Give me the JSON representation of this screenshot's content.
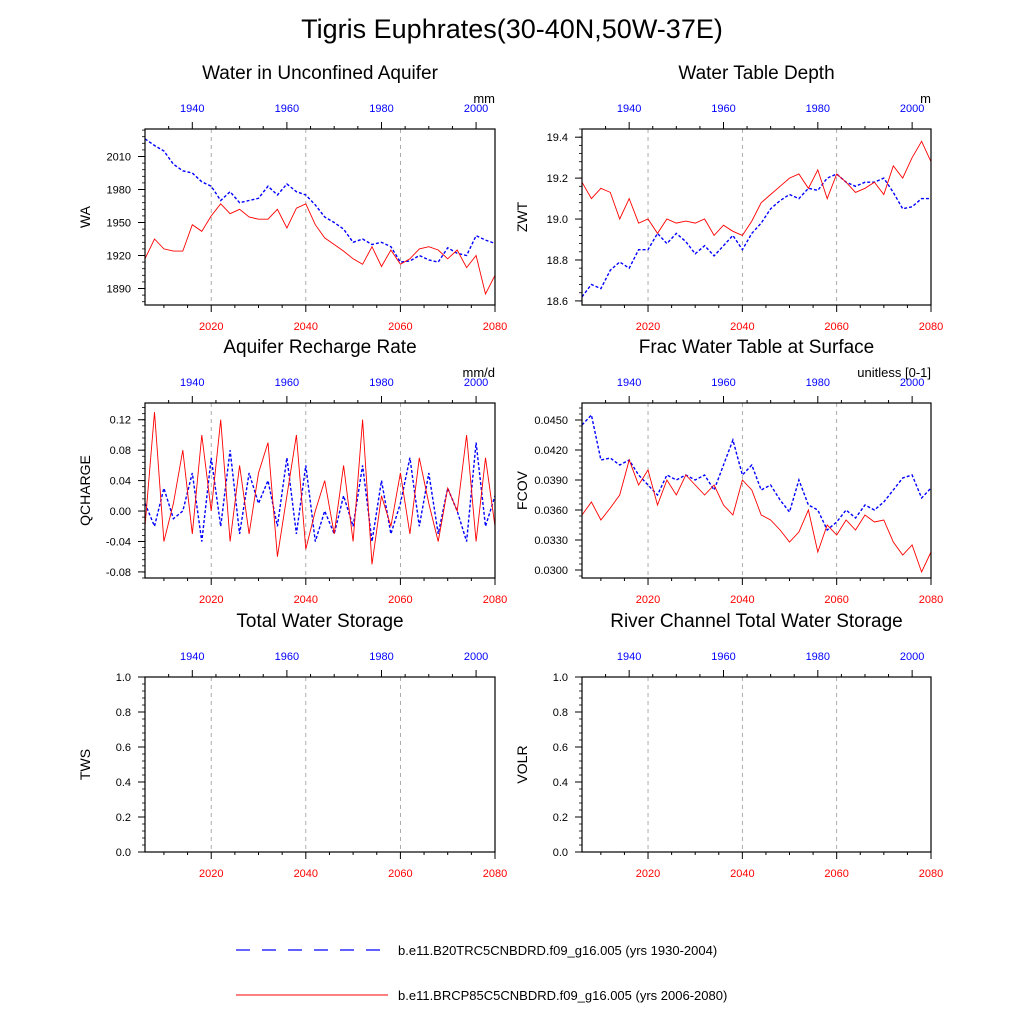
{
  "page_title": "Tigris Euphrates(30-40N,50W-37E)",
  "colors": {
    "top_axis": "#0000ff",
    "bottom_axis": "#ff0000",
    "series_2004": "#0000ff",
    "series_2080": "#ff0000",
    "grid": "#999999"
  },
  "legend": [
    {
      "label": "b.e11.B20TRC5CNBDRD.f09_g16.005 (yrs 1930-2004)",
      "color": "#0000ff",
      "style": "dashed"
    },
    {
      "label": "b.e11.BRCP85C5CNBDRD.f09_g16.005 (yrs 2006-2080)",
      "color": "#ff0000",
      "style": "solid"
    }
  ],
  "chart_data": [
    {
      "type": "line",
      "title": "Water in Unconfined Aquifer",
      "ylabel": "WA",
      "units": "mm",
      "xlim_bottom": [
        2006,
        2080
      ],
      "xlim_top": [
        1930,
        2004
      ],
      "ylim": [
        1875,
        2035
      ],
      "xticks_bottom": [
        2020,
        2040,
        2060,
        2080
      ],
      "xticks_top": [
        1940,
        1960,
        1980,
        2000
      ],
      "yticks": [
        1890,
        1920,
        1950,
        1980,
        2010
      ],
      "ytick_labels": [
        "1890",
        "1920",
        "1950",
        "1980",
        "2010"
      ],
      "grid_x": [
        2020,
        2040,
        2060
      ],
      "series": [
        {
          "color": "#0000ff",
          "style": "dashed",
          "x": [
            2006,
            2008,
            2010,
            2012,
            2014,
            2016,
            2018,
            2020,
            2022,
            2024,
            2026,
            2028,
            2030,
            2032,
            2034,
            2036,
            2038,
            2040,
            2042,
            2044,
            2046,
            2048,
            2050,
            2052,
            2054,
            2056,
            2058,
            2060,
            2062,
            2064,
            2066,
            2068,
            2070,
            2072,
            2074,
            2076,
            2078,
            2080
          ],
          "values": [
            2026,
            2020,
            2015,
            2003,
            1997,
            1995,
            1987,
            1983,
            1970,
            1978,
            1968,
            1970,
            1972,
            1983,
            1975,
            1985,
            1978,
            1975,
            1966,
            1955,
            1950,
            1944,
            1932,
            1935,
            1930,
            1932,
            1928,
            1914,
            1915,
            1920,
            1916,
            1914,
            1927,
            1922,
            1920,
            1938,
            1934,
            1931
          ]
        },
        {
          "color": "#ff0000",
          "style": "solid",
          "x": [
            2006,
            2008,
            2010,
            2012,
            2014,
            2016,
            2018,
            2020,
            2022,
            2024,
            2026,
            2028,
            2030,
            2032,
            2034,
            2036,
            2038,
            2040,
            2042,
            2044,
            2046,
            2048,
            2050,
            2052,
            2054,
            2056,
            2058,
            2060,
            2062,
            2064,
            2066,
            2068,
            2070,
            2072,
            2074,
            2076,
            2078,
            2080
          ],
          "values": [
            1917,
            1935,
            1926,
            1924,
            1924,
            1948,
            1942,
            1956,
            1967,
            1958,
            1962,
            1955,
            1953,
            1953,
            1962,
            1945,
            1963,
            1967,
            1948,
            1936,
            1930,
            1924,
            1917,
            1912,
            1928,
            1910,
            1925,
            1912,
            1917,
            1926,
            1928,
            1925,
            1917,
            1925,
            1909,
            1920,
            1885,
            1902
          ]
        }
      ]
    },
    {
      "type": "line",
      "title": "Water Table Depth",
      "ylabel": "ZWT",
      "units": "m",
      "xlim_bottom": [
        2006,
        2080
      ],
      "xlim_top": [
        1930,
        2004
      ],
      "ylim": [
        18.58,
        19.44
      ],
      "xticks_bottom": [
        2020,
        2040,
        2060,
        2080
      ],
      "xticks_top": [
        1940,
        1960,
        1980,
        2000
      ],
      "yticks": [
        18.6,
        18.8,
        19.0,
        19.2,
        19.4
      ],
      "ytick_labels": [
        "18.6",
        "18.8",
        "19.0",
        "19.2",
        "19.4"
      ],
      "grid_x": [
        2020,
        2040,
        2060
      ],
      "series": [
        {
          "color": "#0000ff",
          "style": "dashed",
          "x": [
            2006,
            2008,
            2010,
            2012,
            2014,
            2016,
            2018,
            2020,
            2022,
            2024,
            2026,
            2028,
            2030,
            2032,
            2034,
            2036,
            2038,
            2040,
            2042,
            2044,
            2046,
            2048,
            2050,
            2052,
            2054,
            2056,
            2058,
            2060,
            2062,
            2064,
            2066,
            2068,
            2070,
            2072,
            2074,
            2076,
            2078,
            2080
          ],
          "values": [
            18.62,
            18.68,
            18.66,
            18.75,
            18.79,
            18.76,
            18.85,
            18.85,
            18.93,
            18.88,
            18.93,
            18.89,
            18.83,
            18.87,
            18.82,
            18.87,
            18.92,
            18.85,
            18.93,
            18.98,
            19.05,
            19.09,
            19.12,
            19.1,
            19.15,
            19.14,
            19.2,
            19.22,
            19.18,
            19.16,
            19.18,
            19.18,
            19.2,
            19.13,
            19.05,
            19.06,
            19.1,
            19.1
          ]
        },
        {
          "color": "#ff0000",
          "style": "solid",
          "x": [
            2006,
            2008,
            2010,
            2012,
            2014,
            2016,
            2018,
            2020,
            2022,
            2024,
            2026,
            2028,
            2030,
            2032,
            2034,
            2036,
            2038,
            2040,
            2042,
            2044,
            2046,
            2048,
            2050,
            2052,
            2054,
            2056,
            2058,
            2060,
            2062,
            2064,
            2066,
            2068,
            2070,
            2072,
            2074,
            2076,
            2078,
            2080
          ],
          "values": [
            19.18,
            19.1,
            19.15,
            19.13,
            19.0,
            19.1,
            18.98,
            19.0,
            18.93,
            19.0,
            18.98,
            18.99,
            18.98,
            19.0,
            18.92,
            18.97,
            18.94,
            18.92,
            18.99,
            19.08,
            19.12,
            19.16,
            19.2,
            19.22,
            19.15,
            19.24,
            19.1,
            19.22,
            19.18,
            19.13,
            19.15,
            19.18,
            19.12,
            19.26,
            19.2,
            19.3,
            19.38,
            19.28
          ]
        }
      ]
    },
    {
      "type": "line",
      "title": "Aquifer Recharge Rate",
      "ylabel": "QCHARGE",
      "units": "mm/d",
      "xlim_bottom": [
        2006,
        2080
      ],
      "xlim_top": [
        1930,
        2004
      ],
      "ylim": [
        -0.088,
        0.142
      ],
      "xticks_bottom": [
        2020,
        2040,
        2060,
        2080
      ],
      "xticks_top": [
        1940,
        1960,
        1980,
        2000
      ],
      "yticks": [
        -0.08,
        -0.04,
        0.0,
        0.04,
        0.08,
        0.12
      ],
      "ytick_labels": [
        "-0.08",
        "-0.04",
        "0.00",
        "0.04",
        "0.08",
        "0.12"
      ],
      "grid_x": [
        2020,
        2040,
        2060
      ],
      "series": [
        {
          "color": "#0000ff",
          "style": "dashed",
          "x": [
            2006,
            2008,
            2010,
            2012,
            2014,
            2016,
            2018,
            2020,
            2022,
            2024,
            2026,
            2028,
            2030,
            2032,
            2034,
            2036,
            2038,
            2040,
            2042,
            2044,
            2046,
            2048,
            2050,
            2052,
            2054,
            2056,
            2058,
            2060,
            2062,
            2064,
            2066,
            2068,
            2070,
            2072,
            2074,
            2076,
            2078,
            2080
          ],
          "values": [
            0.01,
            -0.02,
            0.03,
            -0.01,
            0.0,
            0.05,
            -0.04,
            0.07,
            -0.02,
            0.08,
            -0.03,
            0.05,
            0.01,
            0.04,
            -0.02,
            0.07,
            -0.03,
            0.06,
            -0.04,
            0.0,
            -0.03,
            0.02,
            -0.02,
            0.06,
            -0.04,
            0.04,
            -0.03,
            0.01,
            0.07,
            -0.02,
            0.05,
            -0.03,
            0.03,
            0.0,
            -0.04,
            0.09,
            -0.02,
            0.02
          ]
        },
        {
          "color": "#ff0000",
          "style": "solid",
          "x": [
            2006,
            2008,
            2010,
            2012,
            2014,
            2016,
            2018,
            2020,
            2022,
            2024,
            2026,
            2028,
            2030,
            2032,
            2034,
            2036,
            2038,
            2040,
            2042,
            2044,
            2046,
            2048,
            2050,
            2052,
            2054,
            2056,
            2058,
            2060,
            2062,
            2064,
            2066,
            2068,
            2070,
            2072,
            2074,
            2076,
            2078,
            2080
          ],
          "values": [
            -0.02,
            0.13,
            -0.04,
            0.01,
            0.08,
            -0.03,
            0.1,
            0.0,
            0.12,
            -0.04,
            0.06,
            -0.03,
            0.05,
            0.09,
            -0.06,
            0.02,
            0.1,
            -0.05,
            0.0,
            0.04,
            -0.03,
            0.06,
            -0.04,
            0.12,
            -0.07,
            0.02,
            -0.02,
            0.05,
            -0.03,
            0.07,
            0.01,
            -0.04,
            0.03,
            0.0,
            0.1,
            -0.04,
            0.07,
            -0.02
          ]
        }
      ]
    },
    {
      "type": "line",
      "title": "Frac Water Table at Surface",
      "ylabel": "FCOV",
      "units": "unitless [0-1]",
      "xlim_bottom": [
        2006,
        2080
      ],
      "xlim_top": [
        1930,
        2004
      ],
      "ylim": [
        0.0292,
        0.0467
      ],
      "xticks_bottom": [
        2020,
        2040,
        2060,
        2080
      ],
      "xticks_top": [
        1940,
        1960,
        1980,
        2000
      ],
      "yticks": [
        0.03,
        0.033,
        0.036,
        0.039,
        0.042,
        0.045
      ],
      "ytick_labels": [
        "0.0300",
        "0.0330",
        "0.0360",
        "0.0390",
        "0.0420",
        "0.0450"
      ],
      "grid_x": [
        2020,
        2040,
        2060
      ],
      "series": [
        {
          "color": "#0000ff",
          "style": "dashed",
          "x": [
            2006,
            2008,
            2010,
            2012,
            2014,
            2016,
            2018,
            2020,
            2022,
            2024,
            2026,
            2028,
            2030,
            2032,
            2034,
            2036,
            2038,
            2040,
            2042,
            2044,
            2046,
            2048,
            2050,
            2052,
            2054,
            2056,
            2058,
            2060,
            2062,
            2064,
            2066,
            2068,
            2070,
            2072,
            2074,
            2076,
            2078,
            2080
          ],
          "values": [
            0.0445,
            0.0455,
            0.041,
            0.0412,
            0.0405,
            0.041,
            0.0395,
            0.0385,
            0.0375,
            0.0395,
            0.039,
            0.0395,
            0.039,
            0.0395,
            0.038,
            0.0405,
            0.043,
            0.0395,
            0.0405,
            0.038,
            0.0385,
            0.037,
            0.0358,
            0.039,
            0.0365,
            0.036,
            0.034,
            0.0348,
            0.036,
            0.0352,
            0.0365,
            0.036,
            0.0368,
            0.038,
            0.0392,
            0.0395,
            0.0372,
            0.0382
          ]
        },
        {
          "color": "#ff0000",
          "style": "solid",
          "x": [
            2006,
            2008,
            2010,
            2012,
            2014,
            2016,
            2018,
            2020,
            2022,
            2024,
            2026,
            2028,
            2030,
            2032,
            2034,
            2036,
            2038,
            2040,
            2042,
            2044,
            2046,
            2048,
            2050,
            2052,
            2054,
            2056,
            2058,
            2060,
            2062,
            2064,
            2066,
            2068,
            2070,
            2072,
            2074,
            2076,
            2078,
            2080
          ],
          "values": [
            0.0355,
            0.0368,
            0.035,
            0.0362,
            0.0375,
            0.041,
            0.0385,
            0.04,
            0.0365,
            0.039,
            0.0375,
            0.0395,
            0.0385,
            0.0375,
            0.0385,
            0.0365,
            0.0355,
            0.039,
            0.038,
            0.0355,
            0.035,
            0.034,
            0.0328,
            0.0338,
            0.036,
            0.0318,
            0.0345,
            0.0335,
            0.035,
            0.034,
            0.0355,
            0.0348,
            0.035,
            0.0328,
            0.0315,
            0.0325,
            0.0298,
            0.0318
          ]
        }
      ]
    },
    {
      "type": "line",
      "title": "Total Water Storage",
      "ylabel": "TWS",
      "units": "",
      "xlim_bottom": [
        2006,
        2080
      ],
      "xlim_top": [
        1930,
        2004
      ],
      "ylim": [
        0.0,
        1.0
      ],
      "xticks_bottom": [
        2020,
        2040,
        2060,
        2080
      ],
      "xticks_top": [
        1940,
        1960,
        1980,
        2000
      ],
      "yticks": [
        0.0,
        0.2,
        0.4,
        0.6,
        0.8,
        1.0
      ],
      "ytick_labels": [
        "0.0",
        "0.2",
        "0.4",
        "0.6",
        "0.8",
        "1.0"
      ],
      "grid_x": [
        2020,
        2040,
        2060
      ],
      "series": []
    },
    {
      "type": "line",
      "title": "River Channel Total Water Storage",
      "ylabel": "VOLR",
      "units": "",
      "xlim_bottom": [
        2006,
        2080
      ],
      "xlim_top": [
        1930,
        2004
      ],
      "ylim": [
        0.0,
        1.0
      ],
      "xticks_bottom": [
        2020,
        2040,
        2060,
        2080
      ],
      "xticks_top": [
        1940,
        1960,
        1980,
        2000
      ],
      "yticks": [
        0.0,
        0.2,
        0.4,
        0.6,
        0.8,
        1.0
      ],
      "ytick_labels": [
        "0.0",
        "0.2",
        "0.4",
        "0.6",
        "0.8",
        "1.0"
      ],
      "grid_x": [
        2020,
        2040,
        2060
      ],
      "series": []
    }
  ]
}
